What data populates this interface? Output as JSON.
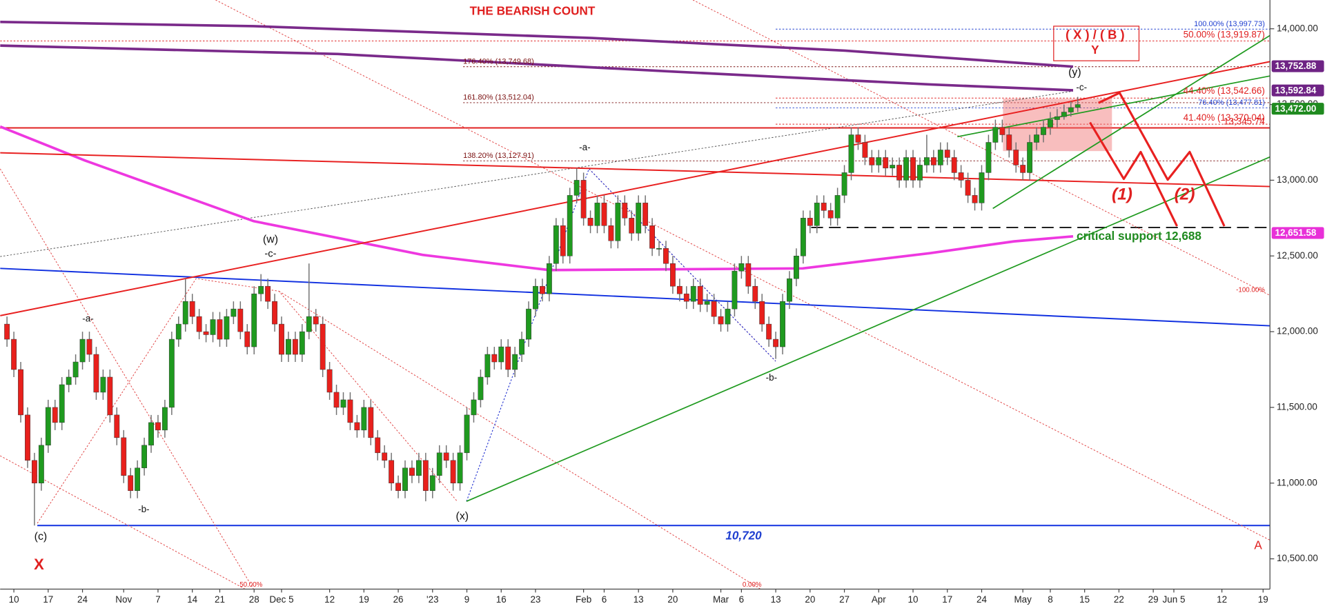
{
  "chart_data": {
    "type": "candlestick",
    "up_color": "#1f9a1f",
    "down_color": "#e8201c",
    "xlim": [
      -2,
      183
    ],
    "ylim": [
      10300,
      14190
    ],
    "xticks": [
      {
        "value": 0,
        "label": "10"
      },
      {
        "value": 5,
        "label": "17"
      },
      {
        "value": 10,
        "label": "24"
      },
      {
        "value": 16,
        "label": "Nov"
      },
      {
        "value": 21,
        "label": "7"
      },
      {
        "value": 26,
        "label": "14"
      },
      {
        "value": 30,
        "label": "21"
      },
      {
        "value": 35,
        "label": "28"
      },
      {
        "value": 39,
        "label": "Dec 5"
      },
      {
        "value": 46,
        "label": "12"
      },
      {
        "value": 51,
        "label": "19"
      },
      {
        "value": 56,
        "label": "26"
      },
      {
        "value": 61,
        "label": "'23"
      },
      {
        "value": 66,
        "label": "9"
      },
      {
        "value": 71,
        "label": "16"
      },
      {
        "value": 76,
        "label": "23"
      },
      {
        "value": 83,
        "label": "Feb"
      },
      {
        "value": 86,
        "label": "6"
      },
      {
        "value": 91,
        "label": "13"
      },
      {
        "value": 96,
        "label": "20"
      },
      {
        "value": 103,
        "label": "Mar"
      },
      {
        "value": 106,
        "label": "6"
      },
      {
        "value": 111,
        "label": "13"
      },
      {
        "value": 116,
        "label": "20"
      },
      {
        "value": 121,
        "label": "27"
      },
      {
        "value": 126,
        "label": "Apr"
      },
      {
        "value": 131,
        "label": "10"
      },
      {
        "value": 136,
        "label": "17"
      },
      {
        "value": 141,
        "label": "24"
      },
      {
        "value": 147,
        "label": "May"
      },
      {
        "value": 151,
        "label": "8"
      },
      {
        "value": 156,
        "label": "15"
      },
      {
        "value": 161,
        "label": "22"
      },
      {
        "value": 166,
        "label": "29"
      },
      {
        "value": 169,
        "label": "Jun 5"
      },
      {
        "value": 176,
        "label": "12"
      },
      {
        "value": 182,
        "label": "19"
      }
    ],
    "yticks": [
      {
        "value": 10500,
        "label": "10,500.00"
      },
      {
        "value": 11000,
        "label": "11,000.00"
      },
      {
        "value": 11500,
        "label": "11,500.00"
      },
      {
        "value": 12000,
        "label": "12,000.00"
      },
      {
        "value": 12500,
        "label": "12,500.00"
      },
      {
        "value": 13000,
        "label": "13,000.00"
      },
      {
        "value": 13500,
        "label": "13,500.00"
      },
      {
        "value": 14000,
        "label": "14,000.00"
      }
    ],
    "x": [
      -1,
      0,
      1,
      2,
      3,
      4,
      5,
      6,
      7,
      8,
      9,
      10,
      11,
      12,
      13,
      14,
      15,
      16,
      17,
      18,
      19,
      20,
      21,
      22,
      23,
      24,
      25,
      26,
      27,
      28,
      29,
      30,
      31,
      32,
      33,
      34,
      35,
      36,
      37,
      38,
      39,
      40,
      41,
      42,
      43,
      44,
      45,
      46,
      47,
      48,
      49,
      50,
      51,
      52,
      53,
      54,
      55,
      56,
      57,
      58,
      59,
      60,
      61,
      62,
      63,
      64,
      65,
      66,
      67,
      68,
      69,
      70,
      71,
      72,
      73,
      74,
      75,
      76,
      77,
      78,
      79,
      80,
      81,
      82,
      83,
      84,
      85,
      86,
      87,
      88,
      89,
      90,
      91,
      92,
      93,
      94,
      95,
      96,
      97,
      98,
      99,
      100,
      101,
      102,
      103,
      104,
      105,
      106,
      107,
      108,
      109,
      110,
      111,
      112,
      113,
      114,
      115,
      116,
      117,
      118,
      119,
      120,
      121,
      122,
      123,
      124,
      125,
      126,
      127,
      128,
      129,
      130,
      131,
      132,
      133,
      134,
      135,
      136,
      137,
      138,
      139,
      140,
      141,
      142,
      143,
      144,
      145,
      146,
      147,
      148,
      149,
      150,
      151,
      152,
      153,
      154,
      155
    ],
    "open": [
      12050,
      11950,
      11750,
      11450,
      11150,
      11000,
      11250,
      11500,
      11400,
      11650,
      11700,
      11800,
      11950,
      11850,
      11600,
      11700,
      11450,
      11300,
      11050,
      10950,
      11100,
      11250,
      11400,
      11350,
      11500,
      11950,
      12050,
      12200,
      12100,
      12000,
      11980,
      12080,
      11950,
      12100,
      12150,
      12000,
      11900,
      12250,
      12300,
      12200,
      12050,
      11850,
      11950,
      11850,
      12000,
      12100,
      12050,
      11750,
      11600,
      11500,
      11550,
      11400,
      11350,
      11500,
      11300,
      11200,
      11150,
      11000,
      10950,
      11100,
      11050,
      11150,
      10950,
      11050,
      11200,
      11150,
      11000,
      11200,
      11450,
      11550,
      11700,
      11850,
      11800,
      11900,
      11750,
      11850,
      11950,
      12150,
      12300,
      12250,
      12450,
      12700,
      12500,
      12900,
      13000,
      12750,
      12700,
      12850,
      12700,
      12600,
      12850,
      12750,
      12650,
      12850,
      12700,
      12550,
      12550,
      12450,
      12300,
      12250,
      12200,
      12300,
      12180,
      12200,
      12100,
      12050,
      12150,
      12400,
      12450,
      12300,
      12200,
      12050,
      11950,
      11900,
      12200,
      12350,
      12500,
      12750,
      12700,
      12850,
      12800,
      12750,
      12900,
      13050,
      13300,
      13250,
      13150,
      13100,
      13150,
      13080,
      13100,
      13000,
      13150,
      13000,
      13100,
      13150,
      13100,
      13200,
      13150,
      13050,
      13000,
      12900,
      12850,
      13050,
      13250,
      13350,
      13300,
      13200,
      13100,
      13050,
      13250,
      13300,
      13350,
      13400,
      13420,
      13450,
      13480
    ],
    "high": [
      12100,
      12000,
      11800,
      11500,
      11200,
      11300,
      11550,
      11550,
      11700,
      11750,
      11850,
      12000,
      12000,
      11900,
      11750,
      11750,
      11500,
      11350,
      11100,
      11150,
      11300,
      11450,
      11450,
      11550,
      12000,
      12100,
      12350,
      12250,
      12150,
      12050,
      12130,
      12130,
      12150,
      12200,
      12200,
      12050,
      12300,
      12380,
      12350,
      12250,
      12100,
      12000,
      12000,
      12050,
      12450,
      12150,
      12100,
      11800,
      11650,
      11600,
      11600,
      11450,
      11550,
      11550,
      11350,
      11250,
      11200,
      11050,
      11150,
      11150,
      11200,
      11200,
      11100,
      11250,
      11250,
      11200,
      11250,
      11500,
      11600,
      11750,
      11900,
      11900,
      11950,
      11950,
      11900,
      12000,
      12200,
      12350,
      12350,
      12500,
      12750,
      12750,
      12950,
      13080,
      13050,
      12800,
      12900,
      12900,
      12750,
      12900,
      12900,
      12800,
      12900,
      12900,
      12750,
      12600,
      12600,
      12500,
      12350,
      12300,
      12350,
      12350,
      12250,
      12250,
      12150,
      12200,
      12450,
      12500,
      12500,
      12350,
      12250,
      12100,
      12000,
      12250,
      12400,
      12550,
      12800,
      12800,
      12900,
      12900,
      12850,
      12950,
      13100,
      13350,
      13350,
      13300,
      13200,
      13200,
      13200,
      13150,
      13150,
      13200,
      13200,
      13150,
      13300,
      13200,
      13250,
      13250,
      13200,
      13100,
      13050,
      12950,
      13100,
      13300,
      13400,
      13400,
      13350,
      13250,
      13150,
      13300,
      13350,
      13400,
      13450,
      13470,
      13500,
      13520,
      13550
    ],
    "low": [
      11900,
      11700,
      11400,
      11100,
      10720,
      10950,
      11200,
      11350,
      11350,
      11600,
      11650,
      11750,
      11800,
      11550,
      11550,
      11400,
      11250,
      11000,
      10900,
      10900,
      11050,
      11200,
      11300,
      11300,
      11450,
      11900,
      12000,
      12050,
      11950,
      11930,
      11930,
      11900,
      11900,
      12050,
      11950,
      11850,
      11850,
      12200,
      12150,
      12000,
      11800,
      11800,
      11800,
      11800,
      11950,
      12000,
      11700,
      11550,
      11450,
      11450,
      11350,
      11300,
      11300,
      11250,
      11150,
      11100,
      10950,
      10900,
      10900,
      11000,
      11000,
      10880,
      10900,
      11000,
      11100,
      10950,
      10950,
      11150,
      11400,
      11500,
      11650,
      11750,
      11750,
      11700,
      11700,
      11800,
      11900,
      12100,
      12200,
      12200,
      12400,
      12450,
      12450,
      12850,
      12700,
      12650,
      12650,
      12650,
      12550,
      12550,
      12700,
      12600,
      12600,
      12650,
      12500,
      12500,
      12400,
      12250,
      12200,
      12150,
      12150,
      12130,
      12130,
      12050,
      12000,
      12000,
      12100,
      12350,
      12250,
      12150,
      12000,
      11900,
      11820,
      11850,
      12150,
      12300,
      12450,
      12650,
      12650,
      12750,
      12700,
      12700,
      12850,
      13000,
      13200,
      13100,
      13050,
      13050,
      13030,
      13030,
      12950,
      12950,
      12950,
      12950,
      13050,
      13050,
      13050,
      13100,
      13000,
      12950,
      12850,
      12800,
      12800,
      13000,
      13200,
      13250,
      13150,
      13050,
      13000,
      13000,
      13200,
      13250,
      13300,
      13350,
      13400,
      13420,
      13450
    ],
    "close": [
      11950,
      11750,
      11450,
      11150,
      11000,
      11250,
      11500,
      11400,
      11650,
      11700,
      11800,
      11950,
      11850,
      11600,
      11700,
      11450,
      11300,
      11050,
      10950,
      11100,
      11250,
      11400,
      11350,
      11500,
      11950,
      12050,
      12200,
      12100,
      12000,
      11980,
      12080,
      11950,
      12100,
      12150,
      12000,
      11900,
      12250,
      12300,
      12200,
      12050,
      11850,
      11950,
      11850,
      12000,
      12100,
      12050,
      11750,
      11600,
      11500,
      11550,
      11400,
      11350,
      11500,
      11300,
      11200,
      11150,
      11000,
      10950,
      11100,
      11050,
      11150,
      10950,
      11050,
      11200,
      11150,
      11000,
      11200,
      11450,
      11550,
      11700,
      11850,
      11800,
      11900,
      11750,
      11850,
      11950,
      12150,
      12300,
      12250,
      12450,
      12700,
      12500,
      12900,
      13000,
      12750,
      12700,
      12850,
      12700,
      12600,
      12850,
      12750,
      12650,
      12850,
      12700,
      12550,
      12550,
      12450,
      12300,
      12250,
      12200,
      12300,
      12180,
      12200,
      12100,
      12050,
      12150,
      12400,
      12450,
      12300,
      12200,
      12050,
      11950,
      11900,
      12200,
      12350,
      12500,
      12750,
      12700,
      12850,
      12800,
      12750,
      12900,
      13050,
      13300,
      13250,
      13150,
      13100,
      13150,
      13080,
      13100,
      13000,
      13150,
      13000,
      13100,
      13150,
      13100,
      13200,
      13150,
      13050,
      13000,
      12900,
      12850,
      13050,
      13250,
      13350,
      13300,
      13200,
      13100,
      13050,
      13250,
      13300,
      13350,
      13400,
      13420,
      13450,
      13480,
      13500
    ],
    "levels": [
      {
        "value": 13997.73,
        "label": "100.00% (13,997.73)",
        "color": "#1f3fd0"
      },
      {
        "value": 13919.87,
        "label": "50.00% (13,919.87)",
        "color": "#e02020"
      },
      {
        "value": 13749.68,
        "label": "176.40% (13,749.68)",
        "color": "#7a1010"
      },
      {
        "value": 13542.66,
        "label": "44.40% (13,542.66)",
        "color": "#e02020"
      },
      {
        "value": 13512.04,
        "label": "161.80% (13,512.04)",
        "color": "#7a1010"
      },
      {
        "value": 13477.81,
        "label": "76.40% (13,477.81)",
        "color": "#1f3fd0"
      },
      {
        "value": 13370.04,
        "label": "41.40% (13,370.04)",
        "color": "#e02020"
      },
      {
        "value": 13345.74,
        "label": "13,345.74",
        "color": "#e02020"
      },
      {
        "value": 13127.91,
        "label": "138.20% (13,127.91)",
        "color": "#7a1010"
      },
      {
        "value": 12688,
        "label": "critical support 12,688",
        "color": "#1f8a1f"
      },
      {
        "value": 10720,
        "label": "10,720",
        "color": "#1f3fd0"
      }
    ],
    "price_tags": [
      {
        "value": 13752.88,
        "label": "13,752.88",
        "color": "#6e2384"
      },
      {
        "value": 13592.84,
        "label": "13,592.84",
        "color": "#6e2384"
      },
      {
        "value": 13472.0,
        "label": "13,472.00",
        "color": "#1f8a1f"
      },
      {
        "value": 12651.58,
        "label": "12,651.58",
        "color": "#e830d8"
      }
    ],
    "annotations": [
      "THE BEARISH COUNT",
      "( X ) / ( B )",
      "Y",
      "(y)",
      "-c-",
      "-a-",
      "(w)",
      "-c-",
      "-a-",
      "-b-",
      "(c)",
      "X",
      "(x)",
      "-b-",
      "(1)",
      "(2)",
      "A",
      "-100.00%",
      "50.00%",
      "0.00%"
    ]
  }
}
